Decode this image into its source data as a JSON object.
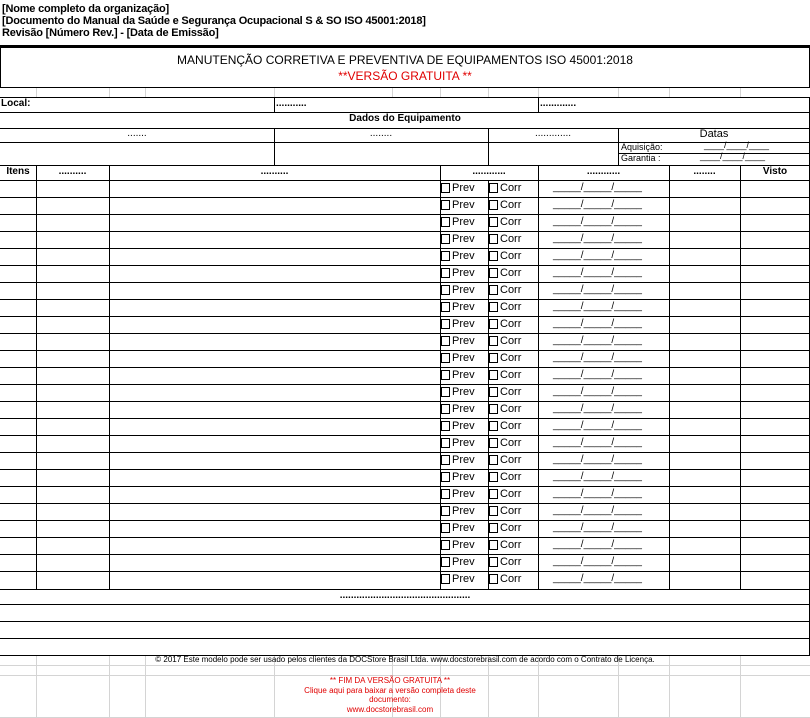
{
  "header": {
    "org": "[Nome completo da organização]",
    "doc": "[Documento do Manual da Saúde e Segurança Ocupacional S & SO ISO 45001:2018]",
    "rev": "Revisão [Número Rev.] - [Data de Emissão]"
  },
  "title": "MANUTENÇÃO CORRETIVA E PREVENTIVA DE EQUIPAMENTOS ISO 45001:2018",
  "subtitle": "**VERSÃO GRATUITA **",
  "local": {
    "label": "Local:",
    "f2": "...........",
    "f3": "............."
  },
  "equip": {
    "title": "Dados do Equipamento",
    "c1": ".......",
    "c2": "........",
    "c3": ".............",
    "datas": "Datas",
    "aquisicao": "Aquisição:",
    "garantia": "Garantia :",
    "date_blank": "____/____/____"
  },
  "table": {
    "headers": [
      "Itens",
      "..........",
      "..........",
      "............",
      "............",
      "........",
      "Visto"
    ],
    "prev": "Prev",
    "corr": "Corr",
    "date_blank": "_____/_____/_____",
    "row_count": 24
  },
  "footer": {
    "dots": "...............................................",
    "copyright": "© 2017 Este modelo pode ser usado pelos clientes da DOCStore Brasil Ltda. www.docstorebrasil.com de acordo com o Contrato de Licença.",
    "end1": "** FIM DA VERSÃO GRATUITA **",
    "end2": "Clique aqui para baixar a versão completa deste",
    "end3": "documento:",
    "end4": "www.docstorebrasil.com"
  },
  "colors": {
    "red": "#e00000"
  }
}
